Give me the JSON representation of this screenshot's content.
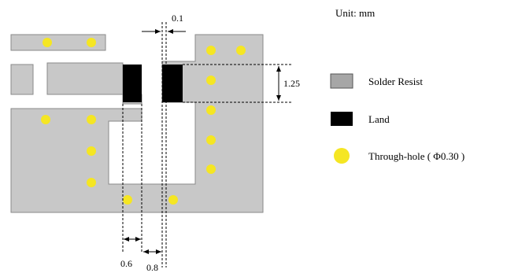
{
  "unit_label": "Unit: mm",
  "dimensions": {
    "gap": "0.1",
    "land_height": "1.25",
    "left_width": "0.6",
    "right_width": "0.8"
  },
  "legend": [
    {
      "label": "Solder Resist",
      "icon": "gray-square",
      "color": "#c8c8c8"
    },
    {
      "label": "Land",
      "icon": "black-square",
      "color": "#000000"
    },
    {
      "label": "Through-hole ( Φ0.30 )",
      "icon": "yellow-circle",
      "color": "#f5e623"
    }
  ]
}
